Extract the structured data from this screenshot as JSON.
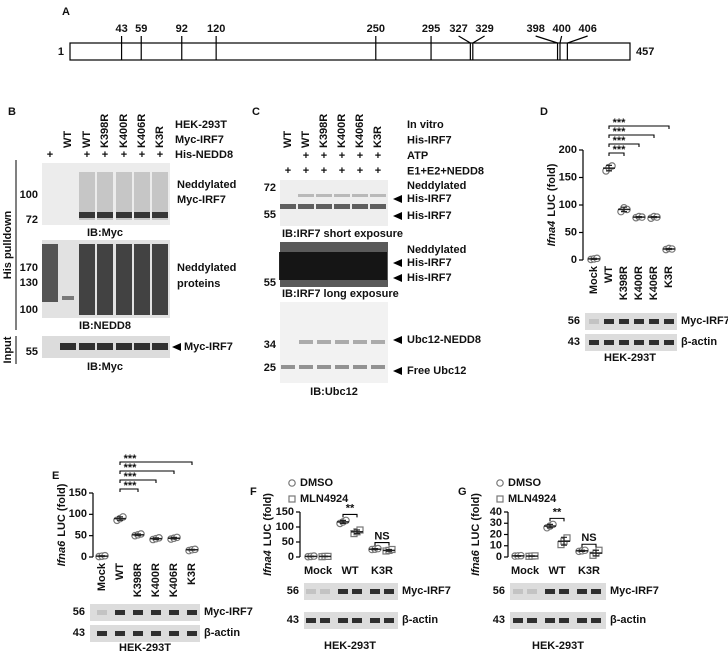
{
  "figure": {
    "panel_a": {
      "label": "A",
      "start": 1,
      "end": 457,
      "sites": [
        43,
        59,
        92,
        120,
        250,
        295,
        327,
        329,
        398,
        400,
        406
      ]
    },
    "panel_b": {
      "label": "B",
      "lanes": [
        null,
        "WT",
        "WT",
        "K398R",
        "K400R",
        "K406R",
        "K3R"
      ],
      "conditions": [
        "HEK-293T",
        "Myc-IRF7",
        "His-NEDD8"
      ],
      "his_nedd8": [
        "+",
        null,
        "+",
        "+",
        "+",
        "+",
        "+"
      ],
      "blots": [
        {
          "markers": [
            100,
            72
          ],
          "labels": [
            "Neddylated",
            "Myc-IRF7"
          ],
          "caption": "IB:Myc"
        },
        {
          "markers": [
            170,
            130,
            100
          ],
          "labels": [
            "Neddylated",
            "proteins"
          ],
          "caption": "IB:NEDD8"
        },
        {
          "markers": [
            55
          ],
          "labels": [
            "Myc-IRF7"
          ],
          "caption": "IB:Myc"
        }
      ],
      "side_labels": [
        "His pulldown",
        "Input"
      ]
    },
    "panel_c": {
      "label": "C",
      "lanes": [
        "WT",
        "WT",
        "K398R",
        "K400R",
        "K406R",
        "K3R"
      ],
      "conditions": [
        "In vitro",
        "His-IRF7",
        "ATP",
        "E1+E2+NEDD8"
      ],
      "atp": [
        null,
        "+",
        "+",
        "+",
        "+",
        "+"
      ],
      "e1e2_nedd8": [
        "+",
        "+",
        "+",
        "+",
        "+",
        "+"
      ],
      "blots": [
        {
          "markers": [
            72,
            55
          ],
          "labels": [
            "Neddylated",
            "His-IRF7",
            "His-IRF7"
          ],
          "caption": "IB:IRF7 short exposure"
        },
        {
          "markers": [
            55
          ],
          "labels": [
            "Neddylated",
            "His-IRF7",
            "His-IRF7"
          ],
          "caption": "IB:IRF7 long exposure"
        },
        {
          "markers": [
            34,
            25
          ],
          "labels": [
            "Ubc12-NEDD8",
            "Free Ubc12"
          ],
          "caption": "IB:Ubc12"
        }
      ]
    }
  },
  "chart_data": [
    {
      "type": "dotplot",
      "panel": "D",
      "ylabel_gene": "Ifna4",
      "ylabel": "LUC (fold)",
      "categories": [
        "Mock",
        "WT",
        "K398R",
        "K400R",
        "K406R",
        "K3R"
      ],
      "values": [
        2,
        167,
        92,
        78,
        78,
        20
      ],
      "errors": [
        1,
        5,
        4,
        1,
        1,
        1
      ],
      "points": [
        [
          1,
          2,
          3
        ],
        [
          162,
          168,
          171
        ],
        [
          88,
          95,
          92
        ],
        [
          77,
          79,
          78
        ],
        [
          76,
          79,
          78
        ],
        [
          19,
          21,
          20
        ]
      ],
      "marker": "circle",
      "color": "#777",
      "ylim": [
        0,
        200
      ],
      "yticks": [
        0,
        50,
        100,
        150,
        200
      ],
      "annotations": [
        "***",
        "***",
        "***",
        "***"
      ],
      "blot": {
        "rows": [
          {
            "marker": 56,
            "label": "Myc-IRF7"
          },
          {
            "marker": 43,
            "label": "β-actin"
          }
        ],
        "cell_line": "HEK-293T"
      }
    },
    {
      "type": "dotplot",
      "panel": "E",
      "ylabel_gene": "Ifna6",
      "ylabel": "LUC (fold)",
      "categories": [
        "Mock",
        "WT",
        "K398R",
        "K400R",
        "K406R",
        "K3R"
      ],
      "values": [
        2,
        90,
        52,
        43,
        44,
        17
      ],
      "errors": [
        1,
        4,
        2,
        2,
        2,
        1
      ],
      "points": [
        [
          1,
          2,
          3
        ],
        [
          86,
          90,
          94
        ],
        [
          50,
          52,
          54
        ],
        [
          41,
          43,
          45
        ],
        [
          42,
          44,
          46
        ],
        [
          15,
          17,
          18
        ]
      ],
      "marker": "circle",
      "color": "#777",
      "ylim": [
        0,
        150
      ],
      "yticks": [
        0,
        50,
        100,
        150
      ],
      "annotations": [
        "***",
        "***",
        "***",
        "***"
      ],
      "blot": {
        "rows": [
          {
            "marker": 56,
            "label": "Myc-IRF7"
          },
          {
            "marker": 43,
            "label": "β-actin"
          }
        ],
        "cell_line": "HEK-293T"
      }
    },
    {
      "type": "dotplot",
      "panel": "F",
      "ylabel_gene": "Ifna4",
      "ylabel": "LUC (fold)",
      "categories": [
        "Mock",
        "WT",
        "K3R"
      ],
      "series": [
        {
          "name": "DMSO",
          "marker": "circle",
          "color": "#777",
          "values": [
            2,
            117,
            26
          ],
          "errors": [
            1,
            5,
            2
          ],
          "points": [
            [
              1,
              2,
              3
            ],
            [
              112,
              117,
              122
            ],
            [
              25,
              26,
              28
            ]
          ]
        },
        {
          "name": "MLN4924",
          "marker": "square",
          "color": "#777",
          "values": [
            2,
            84,
            22
          ],
          "errors": [
            1,
            6,
            3
          ],
          "points": [
            [
              1,
              2,
              2
            ],
            [
              78,
              84,
              90
            ],
            [
              20,
              22,
              25
            ]
          ]
        }
      ],
      "ylim": [
        0,
        150
      ],
      "yticks": [
        0,
        50,
        100,
        150
      ],
      "annotations": [
        "**",
        "NS"
      ],
      "blot": {
        "rows": [
          {
            "marker": 56,
            "label": "Myc-IRF7"
          },
          {
            "marker": 43,
            "label": "β-actin"
          }
        ],
        "cell_line": "HEK-293T"
      }
    },
    {
      "type": "dotplot",
      "panel": "G",
      "ylabel_gene": "Ifna6",
      "ylabel": "LUC (fold)",
      "categories": [
        "Mock",
        "WT",
        "K3R"
      ],
      "series": [
        {
          "name": "DMSO",
          "marker": "circle",
          "color": "#777",
          "values": [
            1,
            27.5,
            5.5
          ],
          "errors": [
            0.3,
            1.5,
            0.5
          ],
          "points": [
            [
              0.8,
              1,
              1.2
            ],
            [
              26,
              27.5,
              29
            ],
            [
              5,
              5.5,
              6
            ]
          ]
        },
        {
          "name": "MLN4924",
          "marker": "square",
          "color": "#777",
          "values": [
            0.8,
            14,
            3.5
          ],
          "errors": [
            0.2,
            3.5,
            2.5
          ],
          "points": [
            [
              0.6,
              0.8,
              1
            ],
            [
              11,
              14,
              17
            ],
            [
              1.5,
              3.5,
              6
            ]
          ]
        }
      ],
      "ylim": [
        0,
        40
      ],
      "yticks": [
        0,
        10,
        20,
        30,
        40
      ],
      "annotations": [
        "**",
        "NS"
      ],
      "blot": {
        "rows": [
          {
            "marker": 56,
            "label": "Myc-IRF7"
          },
          {
            "marker": 43,
            "label": "β-actin"
          }
        ],
        "cell_line": "HEK-293T"
      }
    }
  ]
}
